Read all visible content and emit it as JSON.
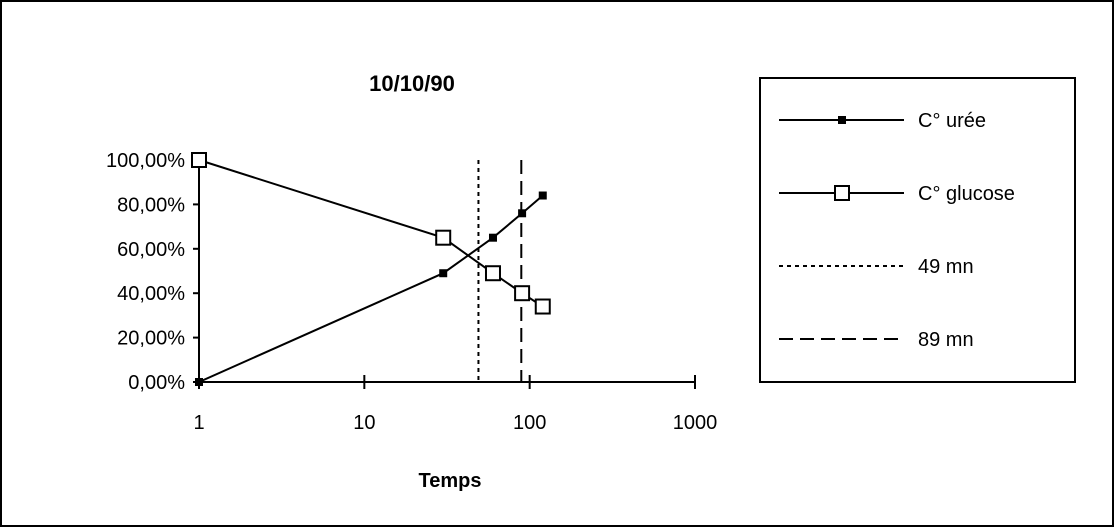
{
  "chart_data": {
    "type": "line",
    "title": "10/10/90",
    "xlabel": "Temps",
    "ylabel": "",
    "x_scale": "log",
    "xlim": [
      1,
      1000
    ],
    "ylim": [
      0,
      100
    ],
    "x_tick_labels": [
      "1",
      "10",
      "100",
      "1000"
    ],
    "x_tick_values": [
      1,
      10,
      100,
      1000
    ],
    "y_tick_labels": [
      "0,00%",
      "20,00%",
      "40,00%",
      "60,00%",
      "80,00%",
      "100,00%"
    ],
    "y_tick_values": [
      0,
      20,
      40,
      60,
      80,
      100
    ],
    "grid": false,
    "legend_position": "right",
    "series": [
      {
        "name": "C° urée",
        "marker": "filled-square",
        "line_style": "solid",
        "color": "#000000",
        "x": [
          1,
          30,
          60,
          90,
          120
        ],
        "y": [
          0,
          49,
          65,
          76,
          84
        ]
      },
      {
        "name": "C° glucose",
        "marker": "open-square",
        "line_style": "solid",
        "color": "#000000",
        "x": [
          1,
          30,
          60,
          90,
          120
        ],
        "y": [
          100,
          65,
          49,
          40,
          34
        ]
      }
    ],
    "reference_lines": [
      {
        "name": "49 mn",
        "x": 49,
        "line_style": "dotted"
      },
      {
        "name": "89 mn",
        "x": 89,
        "line_style": "dashed"
      }
    ]
  }
}
